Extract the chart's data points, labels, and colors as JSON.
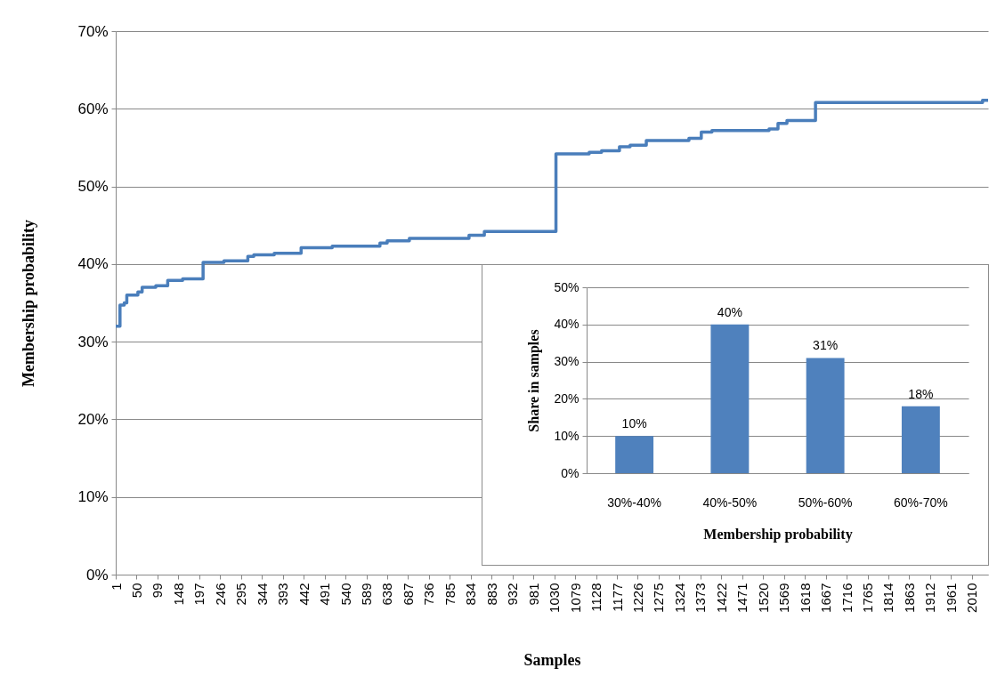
{
  "chart_data": [
    {
      "type": "step",
      "xlabel": "Samples",
      "ylabel": "Membership probability",
      "color": "#4a7ebb",
      "grid": "y",
      "x": [
        1,
        11,
        21,
        27,
        53,
        63,
        95,
        123,
        158,
        206,
        255,
        311,
        325,
        373,
        436,
        509,
        621,
        638,
        690,
        830,
        866,
        1034,
        1112,
        1141,
        1183,
        1208,
        1246,
        1346,
        1375,
        1400,
        1534,
        1555,
        1576,
        1643,
        2035,
        2048
      ],
      "values": [
        32.0,
        34.7,
        35.0,
        36.0,
        36.4,
        37.0,
        37.2,
        37.9,
        38.1,
        40.2,
        40.4,
        41.0,
        41.2,
        41.4,
        42.1,
        42.3,
        42.7,
        43.0,
        43.3,
        43.7,
        44.2,
        54.2,
        54.4,
        54.6,
        55.1,
        55.3,
        55.9,
        56.2,
        57.0,
        57.2,
        57.4,
        58.1,
        58.5,
        60.8,
        61.1,
        61.1
      ],
      "xlim": [
        1,
        2048
      ],
      "xticks": [
        1,
        50,
        99,
        148,
        197,
        246,
        295,
        344,
        393,
        442,
        491,
        540,
        589,
        638,
        687,
        736,
        785,
        834,
        883,
        932,
        981,
        1030,
        1079,
        1128,
        1177,
        1226,
        1275,
        1324,
        1373,
        1422,
        1471,
        1520,
        1569,
        1618,
        1667,
        1716,
        1765,
        1814,
        1863,
        1912,
        1961,
        2010
      ],
      "ylim": [
        0,
        70
      ],
      "yticks": [
        {
          "value": 0,
          "label": "0%"
        },
        {
          "value": 10,
          "label": "10%"
        },
        {
          "value": 20,
          "label": "20%"
        },
        {
          "value": 30,
          "label": "30%"
        },
        {
          "value": 40,
          "label": "40%"
        },
        {
          "value": 50,
          "label": "50%"
        },
        {
          "value": 60,
          "label": "60%"
        },
        {
          "value": 70,
          "label": "70%"
        }
      ]
    },
    {
      "type": "bar",
      "xlabel": "Membership probability",
      "ylabel": "Share in samples",
      "color": "#4f81bd",
      "grid": "y",
      "categories": [
        "30%-40%",
        "40%-50%",
        "50%-60%",
        "60%-70%"
      ],
      "values": [
        10,
        40,
        31,
        18
      ],
      "value_labels": [
        "10%",
        "40%",
        "31%",
        "18%"
      ],
      "ylim": [
        0,
        50
      ],
      "yticks": [
        {
          "value": 0,
          "label": "0%"
        },
        {
          "value": 10,
          "label": "10%"
        },
        {
          "value": 20,
          "label": "20%"
        },
        {
          "value": 30,
          "label": "30%"
        },
        {
          "value": 40,
          "label": "40%"
        },
        {
          "value": 50,
          "label": "50%"
        }
      ]
    }
  ]
}
